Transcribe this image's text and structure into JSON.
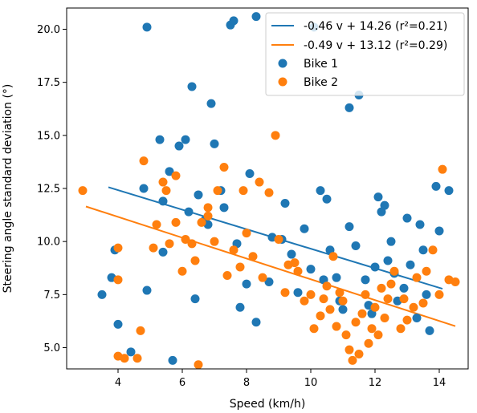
{
  "chart_data": {
    "type": "scatter",
    "title": "",
    "xlabel": "Speed (km/h)",
    "ylabel": "Steering angle standard deviation (°)",
    "xlim": [
      2.4,
      14.9
    ],
    "ylim": [
      4.0,
      21.0
    ],
    "x_ticks": [
      4,
      6,
      8,
      10,
      12,
      14
    ],
    "y_ticks": [
      5.0,
      7.5,
      10.0,
      12.5,
      15.0,
      17.5,
      20.0
    ],
    "x_tick_labels": [
      "4",
      "6",
      "8",
      "10",
      "12",
      "14"
    ],
    "y_tick_labels": [
      "5.0",
      "7.5",
      "10.0",
      "12.5",
      "15.0",
      "17.5",
      "20.0"
    ],
    "grid": false,
    "legend_position": "top-right",
    "fit_lines": [
      {
        "label": "-0.46 v + 14.26 (r²=0.21)",
        "slope": -0.46,
        "intercept": 14.26,
        "x_range": [
          3.7,
          14.1
        ],
        "color": "#1f77b4"
      },
      {
        "label": "-0.49 v + 13.12 (r²=0.29)",
        "slope": -0.49,
        "intercept": 13.12,
        "x_range": [
          3.0,
          14.5
        ],
        "color": "#ff7f0e"
      }
    ],
    "series": [
      {
        "name": "Bike 1",
        "color": "#1f77b4",
        "points": [
          [
            3.5,
            7.5
          ],
          [
            3.8,
            8.3
          ],
          [
            3.9,
            9.6
          ],
          [
            4.0,
            6.1
          ],
          [
            4.4,
            4.8
          ],
          [
            4.9,
            20.1
          ],
          [
            4.9,
            7.7
          ],
          [
            5.3,
            14.8
          ],
          [
            5.4,
            9.5
          ],
          [
            5.6,
            13.3
          ],
          [
            5.7,
            4.4
          ],
          [
            5.9,
            14.5
          ],
          [
            6.1,
            14.8
          ],
          [
            6.3,
            17.3
          ],
          [
            6.4,
            7.3
          ],
          [
            6.7,
            11.0
          ],
          [
            6.9,
            16.5
          ],
          [
            7.0,
            14.6
          ],
          [
            7.2,
            12.4
          ],
          [
            7.5,
            20.2
          ],
          [
            7.6,
            20.4
          ],
          [
            7.8,
            6.9
          ],
          [
            8.0,
            8.0
          ],
          [
            8.3,
            6.2
          ],
          [
            8.3,
            20.6
          ],
          [
            8.7,
            8.1
          ],
          [
            9.1,
            10.1
          ],
          [
            9.6,
            7.6
          ],
          [
            10.0,
            8.7
          ],
          [
            10.1,
            20.1
          ],
          [
            10.3,
            12.4
          ],
          [
            10.5,
            12.0
          ],
          [
            10.9,
            7.2
          ],
          [
            11.5,
            16.9
          ],
          [
            11.7,
            8.2
          ],
          [
            11.8,
            7.0
          ],
          [
            12.0,
            8.8
          ],
          [
            12.2,
            11.4
          ],
          [
            12.5,
            10.0
          ],
          [
            12.6,
            8.5
          ],
          [
            12.9,
            7.8
          ],
          [
            13.3,
            6.4
          ],
          [
            13.6,
            7.5
          ],
          [
            13.9,
            12.6
          ],
          [
            14.0,
            10.5
          ],
          [
            14.3,
            12.4
          ],
          [
            13.7,
            5.8
          ],
          [
            11.9,
            6.6
          ],
          [
            9.4,
            9.4
          ],
          [
            6.8,
            10.8
          ],
          [
            5.4,
            11.9
          ],
          [
            6.5,
            12.2
          ],
          [
            7.3,
            11.6
          ],
          [
            8.1,
            13.2
          ],
          [
            9.2,
            11.8
          ],
          [
            10.6,
            9.6
          ],
          [
            11.2,
            10.7
          ],
          [
            12.4,
            9.1
          ],
          [
            13.1,
            8.9
          ],
          [
            13.4,
            10.8
          ],
          [
            10.8,
            8.3
          ],
          [
            11.0,
            6.8
          ],
          [
            12.7,
            7.2
          ],
          [
            11.4,
            9.8
          ],
          [
            8.8,
            10.2
          ],
          [
            7.7,
            9.9
          ],
          [
            6.2,
            11.4
          ],
          [
            9.8,
            10.6
          ],
          [
            13.0,
            11.1
          ],
          [
            12.1,
            12.1
          ],
          [
            11.2,
            16.3
          ],
          [
            4.8,
            12.5
          ],
          [
            10.4,
            8.2
          ],
          [
            12.3,
            11.7
          ],
          [
            13.5,
            9.6
          ]
        ]
      },
      {
        "name": "Bike 2",
        "color": "#ff7f0e",
        "points": [
          [
            2.9,
            12.4
          ],
          [
            4.0,
            9.7
          ],
          [
            4.0,
            8.2
          ],
          [
            4.0,
            4.6
          ],
          [
            4.2,
            4.5
          ],
          [
            4.6,
            4.5
          ],
          [
            4.7,
            5.8
          ],
          [
            4.8,
            13.8
          ],
          [
            5.2,
            10.8
          ],
          [
            5.4,
            12.8
          ],
          [
            5.6,
            9.9
          ],
          [
            5.8,
            13.1
          ],
          [
            6.0,
            8.6
          ],
          [
            6.3,
            9.9
          ],
          [
            6.5,
            4.2
          ],
          [
            6.6,
            10.9
          ],
          [
            6.8,
            11.6
          ],
          [
            7.1,
            12.4
          ],
          [
            7.4,
            8.4
          ],
          [
            7.6,
            9.6
          ],
          [
            7.9,
            12.4
          ],
          [
            8.2,
            9.3
          ],
          [
            8.4,
            12.8
          ],
          [
            8.9,
            15.0
          ],
          [
            9.2,
            7.6
          ],
          [
            9.5,
            9.0
          ],
          [
            9.8,
            7.2
          ],
          [
            10.1,
            5.9
          ],
          [
            10.4,
            7.3
          ],
          [
            10.6,
            6.8
          ],
          [
            10.9,
            7.6
          ],
          [
            11.1,
            5.6
          ],
          [
            11.3,
            4.4
          ],
          [
            11.5,
            4.7
          ],
          [
            11.6,
            6.6
          ],
          [
            11.8,
            5.2
          ],
          [
            12.0,
            6.9
          ],
          [
            12.2,
            7.8
          ],
          [
            12.4,
            7.3
          ],
          [
            12.6,
            8.6
          ],
          [
            12.8,
            5.9
          ],
          [
            13.0,
            6.3
          ],
          [
            13.3,
            8.3
          ],
          [
            13.5,
            7.1
          ],
          [
            13.8,
            9.6
          ],
          [
            14.0,
            7.5
          ],
          [
            14.1,
            13.4
          ],
          [
            14.3,
            8.2
          ],
          [
            14.5,
            8.1
          ],
          [
            13.6,
            8.6
          ],
          [
            5.1,
            9.7
          ],
          [
            5.8,
            10.9
          ],
          [
            6.4,
            9.1
          ],
          [
            7.0,
            10.0
          ],
          [
            7.8,
            8.8
          ],
          [
            8.5,
            8.3
          ],
          [
            9.3,
            8.9
          ],
          [
            10.0,
            7.5
          ],
          [
            10.3,
            6.5
          ],
          [
            10.8,
            6.0
          ],
          [
            11.0,
            7.2
          ],
          [
            11.4,
            6.2
          ],
          [
            11.7,
            7.5
          ],
          [
            12.1,
            5.6
          ],
          [
            12.5,
            8.0
          ],
          [
            12.9,
            7.3
          ],
          [
            13.2,
            6.9
          ],
          [
            9.0,
            10.1
          ],
          [
            8.0,
            10.4
          ],
          [
            6.8,
            11.2
          ],
          [
            6.1,
            10.1
          ],
          [
            5.5,
            12.4
          ],
          [
            7.3,
            13.5
          ],
          [
            8.7,
            12.3
          ],
          [
            10.7,
            9.3
          ],
          [
            11.9,
            5.9
          ],
          [
            12.3,
            6.4
          ],
          [
            10.5,
            7.9
          ],
          [
            9.6,
            8.6
          ],
          [
            11.2,
            4.9
          ]
        ]
      }
    ]
  }
}
